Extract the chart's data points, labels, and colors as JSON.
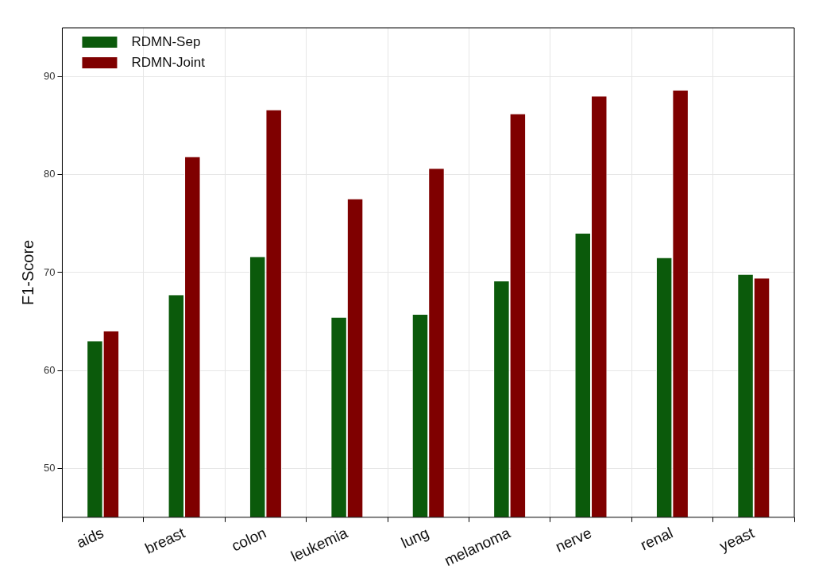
{
  "chart_data": {
    "type": "bar",
    "ylabel": "F1-Score",
    "categories": [
      "aids",
      "breast",
      "colon",
      "leukemia",
      "lung",
      "melanoma",
      "nerve",
      "renal",
      "yeast"
    ],
    "series": [
      {
        "name": "RDMN-Sep",
        "color": "#0b5a0b",
        "values": [
          63.0,
          67.7,
          71.6,
          65.4,
          65.7,
          69.1,
          74.0,
          71.5,
          69.8
        ]
      },
      {
        "name": "RDMN-Joint",
        "color": "#7f0000",
        "values": [
          64.0,
          81.8,
          86.6,
          77.5,
          80.6,
          86.2,
          88.0,
          88.6,
          69.4
        ]
      }
    ],
    "ylim": [
      45,
      95
    ],
    "yticks": [
      50,
      60,
      70,
      80,
      90
    ],
    "grid": true,
    "legend": "top left"
  }
}
